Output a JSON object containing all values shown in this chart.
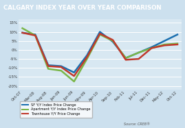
{
  "title": "CALGARY INDEX YEAR OVER YEAR COMPARISON",
  "title_bg": "#2278b5",
  "title_color": "#ffffff",
  "bg_color": "#cce0ee",
  "plot_bg": "#d8e8f2",
  "x_labels": [
    "Oct-07",
    "Mar-08",
    "Aug-08",
    "Jan-09",
    "Jun-09",
    "Nov-09",
    "Apr-10",
    "Sep-10",
    "Feb-11",
    "Jul-11",
    "Dec-11",
    "May-12",
    "Oct-12"
  ],
  "yticks": [
    -20,
    -15,
    -10,
    -5,
    0,
    5,
    10,
    15
  ],
  "ylim": [
    -22,
    17
  ],
  "sf_color": "#1a6faf",
  "apt_color": "#7ab648",
  "town_color": "#c0392b",
  "sf_values": [
    9.5,
    8.5,
    -8.5,
    -9.0,
    -12.5,
    -3.0,
    10.0,
    4.5,
    -4.5,
    -1.5,
    1.5,
    5.0,
    8.5
  ],
  "apt_values": [
    12.0,
    8.0,
    -10.5,
    -11.5,
    -17.5,
    -5.0,
    8.5,
    5.0,
    -4.5,
    -1.5,
    1.0,
    3.0,
    3.5
  ],
  "town_values": [
    9.5,
    8.0,
    -9.0,
    -9.5,
    -14.5,
    -4.0,
    9.0,
    5.5,
    -5.5,
    -5.0,
    1.0,
    2.5,
    3.0
  ],
  "legend_sf": "SF Y/Y Index Price Change",
  "legend_apt": "Apartment Y/Y Index Price Change",
  "legend_town": "Townhouse Y/Y Price Change",
  "source_text": "Source: CREB®",
  "grid_color": "#ffffff",
  "line_width": 1.8
}
